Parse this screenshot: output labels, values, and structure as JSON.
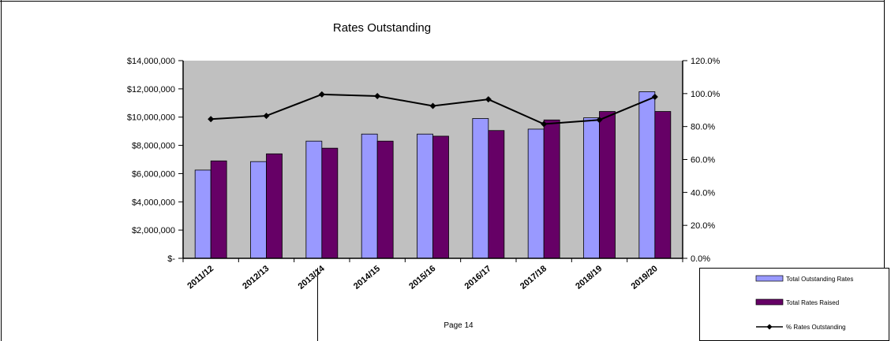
{
  "page": {
    "footer": "Page 14"
  },
  "chart_data": {
    "type": "bar",
    "title": "Rates Outstanding",
    "categories": [
      "2011/12",
      "2012/13",
      "2013/14",
      "2014/15",
      "2015/16",
      "2016/17",
      "2017/18",
      "2018/19",
      "2019/20"
    ],
    "series": [
      {
        "name": "Total Outstanding Rates",
        "type": "bar",
        "axis": "left",
        "color": "#9999ff",
        "values": [
          6250000,
          6850000,
          8300000,
          8800000,
          8800000,
          9900000,
          9150000,
          9950000,
          11800000
        ]
      },
      {
        "name": "Total Rates Raised",
        "type": "bar",
        "axis": "left",
        "color": "#660066",
        "values": [
          6900000,
          7400000,
          7800000,
          8300000,
          8650000,
          9050000,
          9800000,
          10400000,
          10400000
        ]
      },
      {
        "name": "% Rates Outstanding",
        "type": "line",
        "axis": "right",
        "color": "#000000",
        "values": [
          84.5,
          86.5,
          99.5,
          98.5,
          92.5,
          96.5,
          81.5,
          84.0,
          98.0
        ]
      }
    ],
    "yleft": {
      "min": 0,
      "max": 14000000,
      "step": 2000000,
      "ticks": [
        "$-",
        "$2,000,000",
        "$4,000,000",
        "$6,000,000",
        "$8,000,000",
        "$10,000,000",
        "$12,000,000",
        "$14,000,000"
      ]
    },
    "yright": {
      "min": 0,
      "max": 120,
      "step": 20,
      "ticks": [
        "0.0%",
        "20.0%",
        "40.0%",
        "60.0%",
        "80.0%",
        "100.0%",
        "120.0%"
      ]
    },
    "plot_background": "#c0c0c0",
    "grid": false,
    "legend": "bottom-right"
  }
}
